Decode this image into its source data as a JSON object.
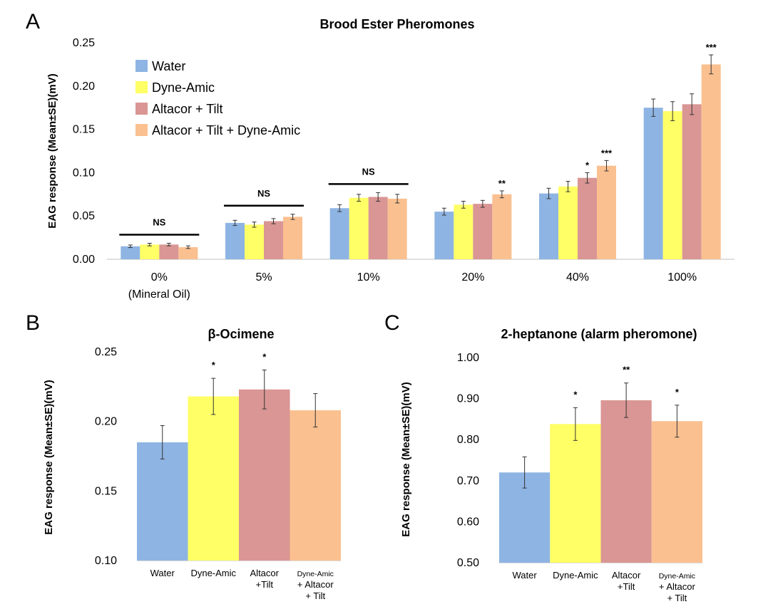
{
  "panels": [
    {
      "letter": "A"
    },
    {
      "letter": "B"
    },
    {
      "letter": "C"
    }
  ],
  "colors": {
    "water": "#8eb4e3",
    "dyne": "#ffff66",
    "altacor": "#d99694",
    "combo": "#fac090"
  },
  "chart_data": [
    {
      "type": "bar",
      "title": "Brood Ester Pheromones",
      "ylabel": "EAG response (Mean±SE)(mV)",
      "ylim": [
        0,
        0.25
      ],
      "yticks": [
        "0.00",
        "0.05",
        "0.10",
        "0.15",
        "0.20",
        "0.25"
      ],
      "ytick_values": [
        0,
        0.05,
        0.1,
        0.15,
        0.2,
        0.25
      ],
      "categories": [
        "0%",
        "5%",
        "10%",
        "20%",
        "40%",
        "100%"
      ],
      "category_sublabels": [
        "(Mineral Oil)",
        "",
        "",
        "",
        "",
        ""
      ],
      "series": [
        {
          "name": "Water",
          "color": "#8eb4e3",
          "values": [
            0.015,
            0.042,
            0.059,
            0.055,
            0.076,
            0.175
          ],
          "errors": [
            0.0015,
            0.003,
            0.004,
            0.004,
            0.006,
            0.01
          ]
        },
        {
          "name": "Dyne-Amic",
          "color": "#ffff66",
          "values": [
            0.017,
            0.04,
            0.071,
            0.063,
            0.084,
            0.171
          ],
          "errors": [
            0.0015,
            0.003,
            0.004,
            0.004,
            0.006,
            0.011
          ]
        },
        {
          "name": "Altacor + Tilt",
          "color": "#d99694",
          "values": [
            0.017,
            0.044,
            0.072,
            0.064,
            0.094,
            0.179
          ],
          "errors": [
            0.0015,
            0.003,
            0.005,
            0.004,
            0.006,
            0.012
          ]
        },
        {
          "name": "Altacor + Tilt + Dyne-Amic",
          "color": "#fac090",
          "values": [
            0.014,
            0.049,
            0.07,
            0.075,
            0.108,
            0.225
          ],
          "errors": [
            0.0015,
            0.003,
            0.005,
            0.004,
            0.006,
            0.011
          ]
        }
      ],
      "significance": [
        [
          "",
          "",
          "",
          ""
        ],
        [
          "",
          "",
          "",
          ""
        ],
        [
          "",
          "",
          "",
          ""
        ],
        [
          "",
          "",
          "",
          "**"
        ],
        [
          "",
          "",
          "*",
          "***"
        ],
        [
          "",
          "",
          "",
          "***"
        ]
      ],
      "ns_groups": [
        {
          "category_index": 0,
          "label": "NS"
        },
        {
          "category_index": 1,
          "label": "NS"
        },
        {
          "category_index": 2,
          "label": "NS"
        }
      ],
      "legend_position": "top-left"
    },
    {
      "type": "bar",
      "title": "β-Ocimene",
      "ylabel": "EAG response (Mean±SE)(mV)",
      "ylim": [
        0.1,
        0.25
      ],
      "yticks": [
        "0.10",
        "0.15",
        "0.20",
        "0.25"
      ],
      "ytick_values": [
        0.1,
        0.15,
        0.2,
        0.25
      ],
      "categories": [
        {
          "lines": [
            "Water"
          ]
        },
        {
          "lines": [
            "Dyne-Amic"
          ]
        },
        {
          "lines": [
            "Altacor",
            "+Tilt"
          ]
        },
        {
          "lines": [
            "Dyne-Amic",
            "+ Altacor",
            "+ Tilt"
          ]
        }
      ],
      "values": [
        0.185,
        0.218,
        0.223,
        0.208
      ],
      "errors": [
        0.012,
        0.013,
        0.014,
        0.012
      ],
      "colors": [
        "#8eb4e3",
        "#ffff66",
        "#d99694",
        "#fac090"
      ],
      "significance": [
        "",
        "*",
        "*",
        ""
      ]
    },
    {
      "type": "bar",
      "title": "2-heptanone (alarm pheromone)",
      "ylabel": "EAG response (Mean±SE)(mV)",
      "ylim": [
        0.5,
        1.0
      ],
      "yticks": [
        "0.50",
        "0.60",
        "0.70",
        "0.80",
        "0.90",
        "1.00"
      ],
      "ytick_values": [
        0.5,
        0.6,
        0.7,
        0.8,
        0.9,
        1.0
      ],
      "categories": [
        {
          "lines": [
            "Water"
          ]
        },
        {
          "lines": [
            "Dyne-Amic"
          ]
        },
        {
          "lines": [
            "Altacor",
            "+Tilt"
          ]
        },
        {
          "lines": [
            "Dyne-Amic",
            "+ Altacor",
            "+ Tilt"
          ]
        }
      ],
      "values": [
        0.72,
        0.838,
        0.896,
        0.845
      ],
      "errors": [
        0.038,
        0.04,
        0.042,
        0.039
      ],
      "colors": [
        "#8eb4e3",
        "#ffff66",
        "#d99694",
        "#fac090"
      ],
      "significance": [
        "",
        "*",
        "**",
        "*"
      ]
    }
  ]
}
